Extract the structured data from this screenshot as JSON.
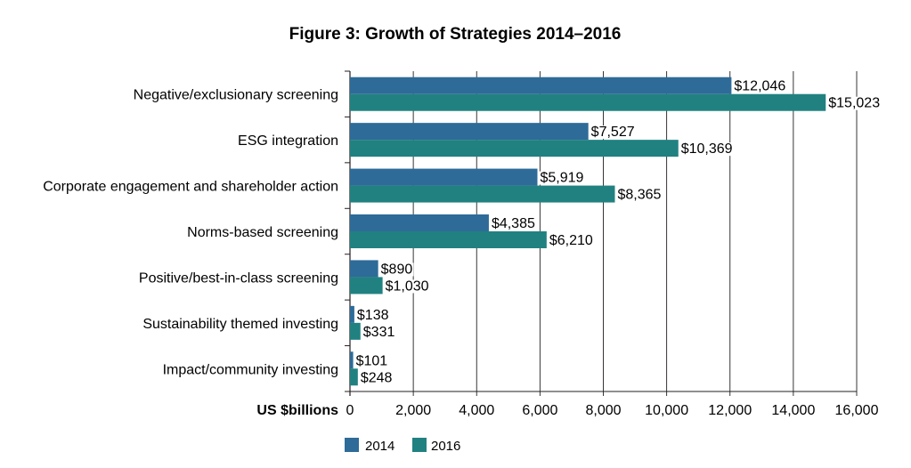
{
  "chart_data": {
    "type": "bar",
    "orientation": "horizontal",
    "title": "Figure 3: Growth of Strategies 2014–2016",
    "xlabel": "US $billions",
    "ylabel": "",
    "xlim": [
      0,
      16000
    ],
    "xticks": [
      0,
      2000,
      4000,
      6000,
      8000,
      10000,
      12000,
      14000,
      16000
    ],
    "xtick_labels": [
      "0",
      "2,000",
      "4,000",
      "6,000",
      "8,000",
      "10,000",
      "12,000",
      "14,000",
      "16,000"
    ],
    "grid": "vertical",
    "categories": [
      "Negative/exclusionary screening",
      "ESG integration",
      "Corporate engagement and shareholder action",
      "Norms-based screening",
      "Positive/best-in-class screening",
      "Sustainability themed investing",
      "Impact/community investing"
    ],
    "series": [
      {
        "name": "2014",
        "color": "#2e6b98",
        "values": [
          12046,
          7527,
          5919,
          4385,
          890,
          138,
          101
        ],
        "labels": [
          "$12,046",
          "$7,527",
          "$5,919",
          "$4,385",
          "$890",
          "$138",
          "$101"
        ]
      },
      {
        "name": "2016",
        "color": "#218181",
        "values": [
          15023,
          10369,
          8365,
          6210,
          1030,
          331,
          248
        ],
        "labels": [
          "$15,023",
          "$10,369",
          "$8,365",
          "$6,210",
          "$1,030",
          "$331",
          "$248"
        ]
      }
    ],
    "legend": {
      "position": "bottom",
      "entries": [
        "2014",
        "2016"
      ]
    }
  }
}
